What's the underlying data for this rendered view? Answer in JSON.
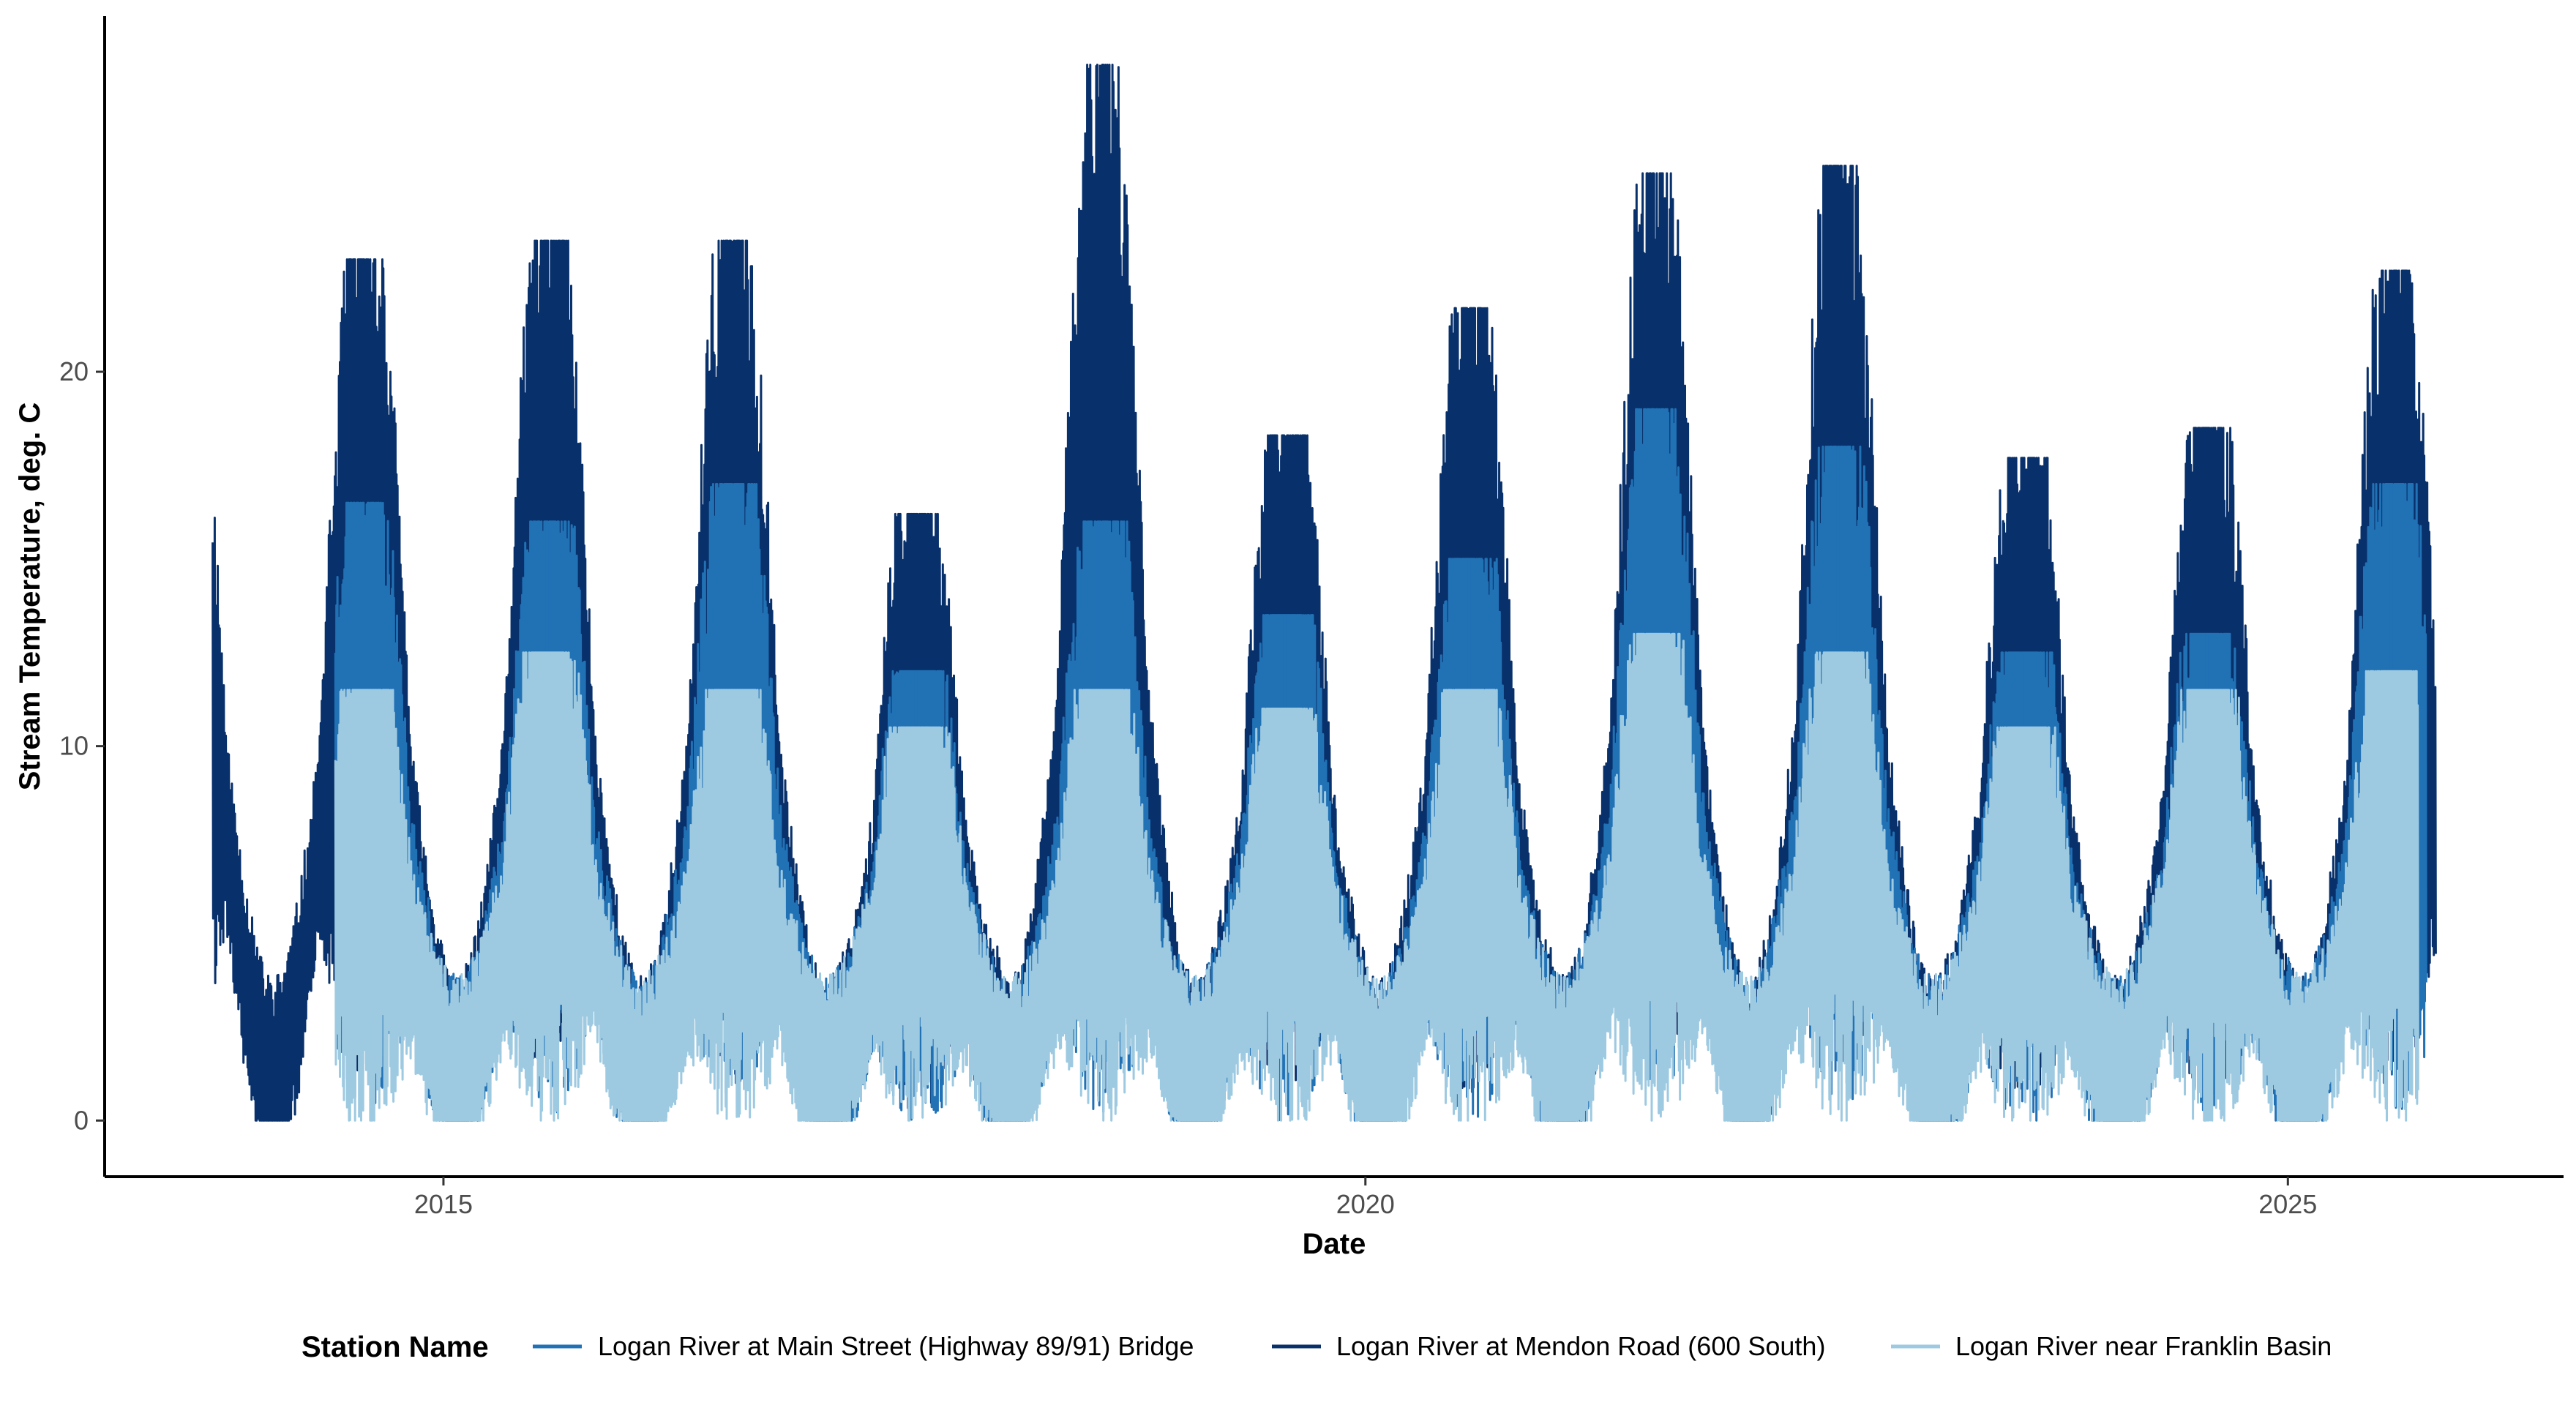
{
  "chart_data": {
    "type": "line",
    "xlabel": "Date",
    "ylabel": "Stream Temperature, deg. C",
    "x_range": [
      "2013-03-01",
      "2026-07-01"
    ],
    "ylim": [
      -1.5,
      29.5
    ],
    "x_ticks": [
      {
        "label": "2015",
        "date": "2015-01-01"
      },
      {
        "label": "2020",
        "date": "2020-01-01"
      },
      {
        "label": "2025",
        "date": "2025-01-01"
      }
    ],
    "y_ticks": [
      0,
      10,
      20
    ],
    "grid": false,
    "legend": {
      "title": "Station Name",
      "position": "bottom",
      "entries": [
        "Logan River at Main Street (Highway 89/91) Bridge",
        "Logan River at Mendon Road (600 South)",
        "Logan River near Franklin Basin"
      ]
    },
    "series": [
      {
        "name": "Logan River at Mendon Road (600 South)",
        "color": "#08306b",
        "start": "2013-10-01",
        "end": "2025-10-20",
        "annual_peaks": [
          {
            "year": 2014,
            "max": 23.0
          },
          {
            "year": 2015,
            "max": 23.5
          },
          {
            "year": 2016,
            "max": 23.5
          },
          {
            "year": 2017,
            "max": 16.2
          },
          {
            "year": 2018,
            "max": 28.2
          },
          {
            "year": 2019,
            "max": 18.3
          },
          {
            "year": 2020,
            "max": 21.7
          },
          {
            "year": 2021,
            "max": 25.3
          },
          {
            "year": 2022,
            "max": 25.5
          },
          {
            "year": 2023,
            "max": 17.7
          },
          {
            "year": 2024,
            "max": 18.5
          },
          {
            "year": 2025,
            "max": 22.7
          }
        ],
        "winter_min": 0.0
      },
      {
        "name": "Logan River at Main Street (Highway 89/91) Bridge",
        "color": "#2171b5",
        "start": "2014-06-01",
        "end": "2025-10-01",
        "annual_peaks": [
          {
            "year": 2014,
            "max": 16.5
          },
          {
            "year": 2015,
            "max": 16.0
          },
          {
            "year": 2016,
            "max": 17.0
          },
          {
            "year": 2017,
            "max": 12.0
          },
          {
            "year": 2018,
            "max": 16.0
          },
          {
            "year": 2019,
            "max": 13.5
          },
          {
            "year": 2020,
            "max": 15.0
          },
          {
            "year": 2021,
            "max": 19.0
          },
          {
            "year": 2022,
            "max": 18.0
          },
          {
            "year": 2023,
            "max": 12.5
          },
          {
            "year": 2024,
            "max": 13.0
          },
          {
            "year": 2025,
            "max": 17.0
          }
        ],
        "winter_min": 0.0
      },
      {
        "name": "Logan River near Franklin Basin",
        "color": "#9ecae1",
        "start": "2014-06-01",
        "end": "2025-09-15",
        "annual_peaks": [
          {
            "year": 2014,
            "max": 11.5
          },
          {
            "year": 2015,
            "max": 12.5
          },
          {
            "year": 2016,
            "max": 11.5
          },
          {
            "year": 2017,
            "max": 10.5
          },
          {
            "year": 2018,
            "max": 11.5
          },
          {
            "year": 2019,
            "max": 11.0
          },
          {
            "year": 2020,
            "max": 11.5
          },
          {
            "year": 2021,
            "max": 13.0
          },
          {
            "year": 2022,
            "max": 12.5
          },
          {
            "year": 2023,
            "max": 10.5
          },
          {
            "year": 2024,
            "max": 11.5
          },
          {
            "year": 2025,
            "max": 12.0
          }
        ],
        "winter_min": 0.0
      }
    ]
  }
}
